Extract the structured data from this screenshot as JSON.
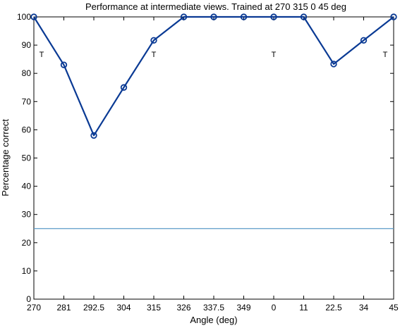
{
  "chart_data": {
    "type": "line",
    "title": "Performance at intermediate views. Trained at 270 315 0 45 deg",
    "xlabel": "Angle (deg)",
    "ylabel": "Percentage correct",
    "categories": [
      "270",
      "281",
      "292.5",
      "304",
      "315",
      "326",
      "337.5",
      "349",
      "0",
      "11",
      "22.5",
      "34",
      "45"
    ],
    "series": [
      {
        "values": [
          100,
          83,
          58,
          75,
          91.7,
          100,
          100,
          100,
          100,
          100,
          83.3,
          91.7,
          100
        ],
        "color": "#0a3a94",
        "marker": "circle"
      }
    ],
    "reference_line": {
      "y": 25,
      "color": "#5b9bc8"
    },
    "trained_marks": [
      {
        "x": "270",
        "label": "T"
      },
      {
        "x": "315",
        "label": "T"
      },
      {
        "x": "0",
        "label": "T"
      },
      {
        "x": "45",
        "label": "T"
      }
    ],
    "ylim": [
      0,
      100
    ],
    "yticks": [
      0,
      10,
      20,
      30,
      40,
      50,
      60,
      70,
      80,
      90,
      100
    ],
    "grid": false,
    "legend": "none"
  }
}
